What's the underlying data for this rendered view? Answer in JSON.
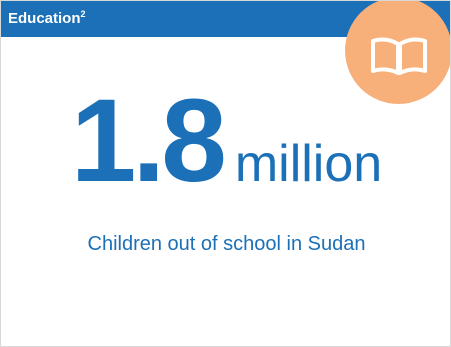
{
  "header": {
    "title": "Education",
    "footnote": "2"
  },
  "icon": {
    "name": "open-book-icon"
  },
  "stat": {
    "value": "1.8",
    "unit": "million",
    "caption": "Children out of school in Sudan"
  },
  "colors": {
    "primary_blue": "#1c70b7",
    "icon_circle": "#f8b07a",
    "background": "#ffffff"
  }
}
